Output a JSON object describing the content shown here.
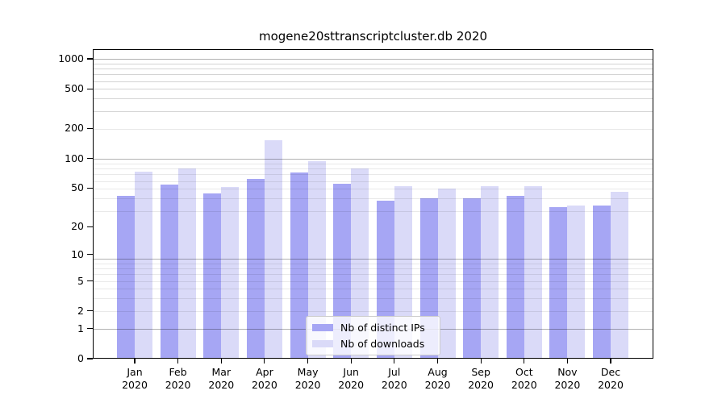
{
  "chart_data": {
    "type": "bar",
    "title": "mogene20sttranscriptcluster.db 2020",
    "categories": [
      {
        "month": "Jan",
        "year": "2020"
      },
      {
        "month": "Feb",
        "year": "2020"
      },
      {
        "month": "Mar",
        "year": "2020"
      },
      {
        "month": "Apr",
        "year": "2020"
      },
      {
        "month": "May",
        "year": "2020"
      },
      {
        "month": "Jun",
        "year": "2020"
      },
      {
        "month": "Jul",
        "year": "2020"
      },
      {
        "month": "Aug",
        "year": "2020"
      },
      {
        "month": "Sep",
        "year": "2020"
      },
      {
        "month": "Oct",
        "year": "2020"
      },
      {
        "month": "Nov",
        "year": "2020"
      },
      {
        "month": "Dec",
        "year": "2020"
      }
    ],
    "series": [
      {
        "name": "Nb of distinct IPs",
        "color": "#a6a6f4",
        "values": [
          42,
          54,
          44,
          62,
          72,
          55,
          37,
          39,
          39,
          42,
          32,
          33
        ]
      },
      {
        "name": "Nb of downloads",
        "color": "#dadaf8",
        "values": [
          73,
          79,
          51,
          152,
          94,
          79,
          52,
          49,
          52,
          52,
          33,
          46
        ]
      }
    ],
    "yscale": "log10(1+v)",
    "ylim": [
      0,
      1250
    ],
    "yticks": [
      0,
      1,
      2,
      5,
      10,
      20,
      50,
      100,
      200,
      500,
      1000
    ],
    "grid": "horizontal",
    "legend_position": "inside-bottom-center",
    "colors": {
      "background": "#ffffff",
      "spine": "#000000",
      "major_grid": "#b2b2b2",
      "minor_grid": "#e9e9e9",
      "text": "#000000"
    }
  }
}
